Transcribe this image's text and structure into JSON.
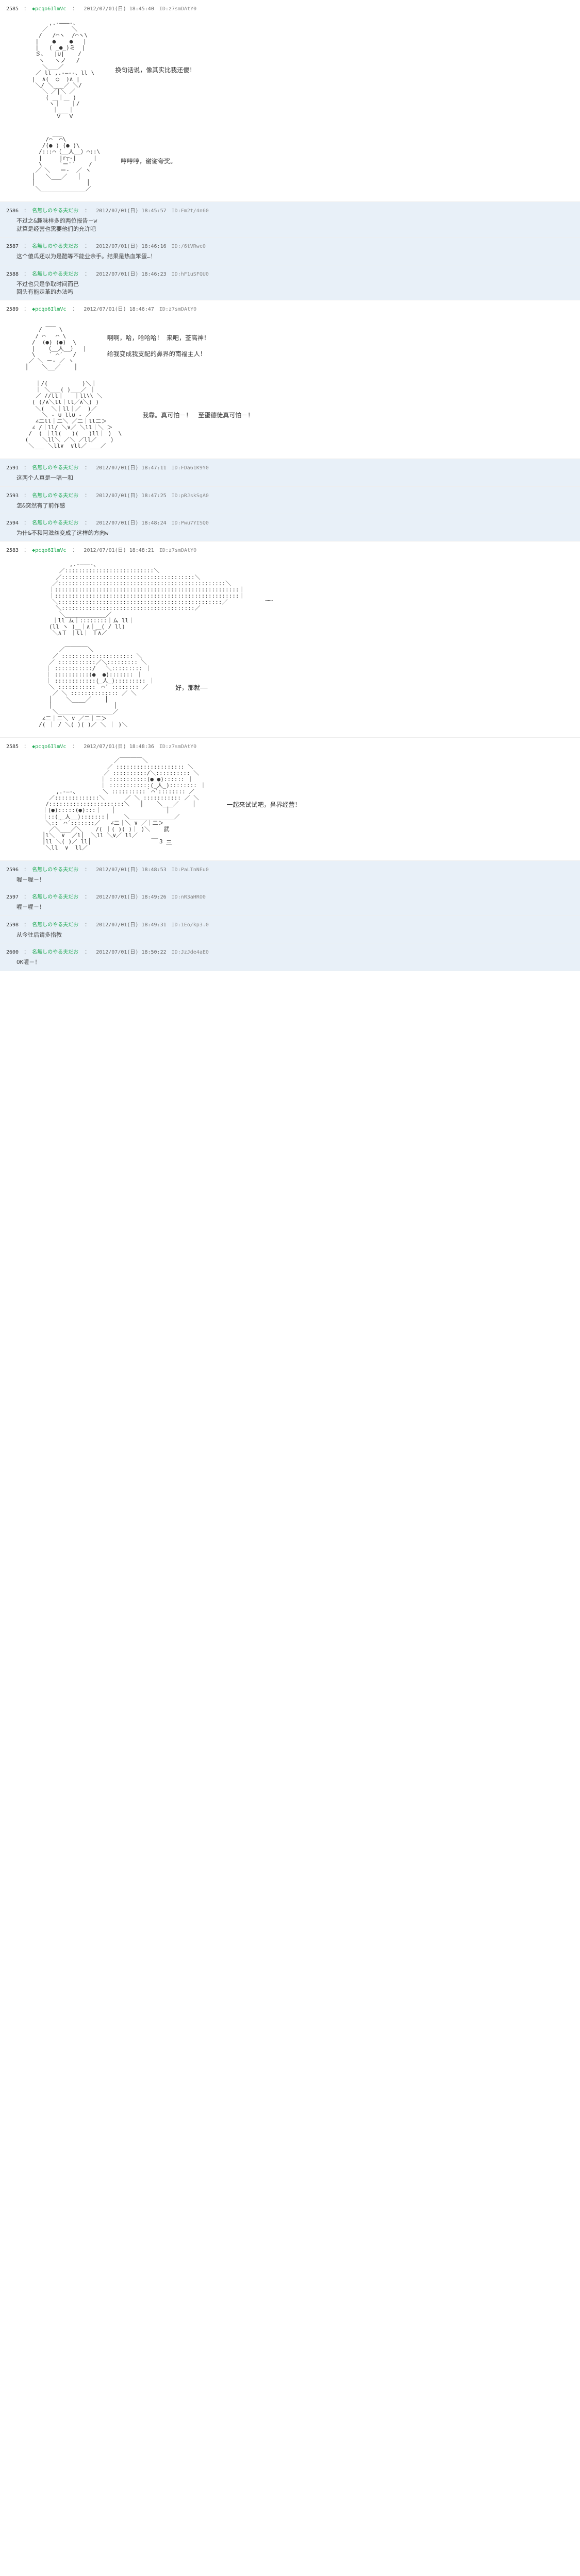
{
  "posts": [
    {
      "num": "2585",
      "name": "◆pcqo6IlmVc",
      "date": "2012/07/01(日) 18:45:40",
      "uid": "ID:z7smDAtY0",
      "type": "main",
      "aa_blocks": [
        {
          "art": "        ,.-―――-、\n      ／       ＼\n     /   /⌒ヽ  /⌒ヽ\\\n    |    ●    ●   |\n    |   ( _●_)ミ  |\n    彡､   |∪|    /\n     ヽ   ヽノ   /\n      ＼___／\n    ／ ll ,.-―‐-、ll \\\n   |  ∧(  ○  )∧ |\n    ＼/ ＼___／ ＼/\n      ＼ ／|＼ ／\n       ( ＿｜＿ )\n        ヽ｜   ｜/\n         ｜___｜\n          Ｖ  Ｖ",
          "text": "换句话说，像其实比我还傻！"
        },
        {
          "art": "         ___\n       /⌒  ⌒\\\n      /(● ) (● )\\\n     /:::⌒（__人__）⌒::\\\n     |     |r┬-|     |\n     \\     `ー'´    /\n    ／ ＼   ー‐  ／ ヽ\n   │   ＼___／   │\n   │               │\n    ＼_____________／",
          "text": "哼哼哼，谢谢夸奖。"
        }
      ]
    },
    {
      "num": "2586",
      "name": "名無しのやる夫だお",
      "date": "2012/07/01(日) 18:45:57",
      "uid": "ID:Fm2t/4n60",
      "type": "reply",
      "body": "不过之&趣味样多的两位报告－w\n就算是经营也需要他们的允许吧"
    },
    {
      "num": "2587",
      "name": "名無しのやる夫だお",
      "date": "2012/07/01(日) 18:46:16",
      "uid": "ID:/6tVRwc0",
      "type": "reply",
      "body": "这个傻瓜还以为是酷等不能业余手。结果是热血笨蛋…！"
    },
    {
      "num": "2588",
      "name": "名無しのやる夫だお",
      "date": "2012/07/01(日) 18:46:23",
      "uid": "ID:hF1uSFQU0",
      "type": "reply",
      "body": "不过也只是争取时间而已\n回头有能走革的办法吗"
    },
    {
      "num": "2589",
      "name": "◆pcqo6IlmVc",
      "date": "2012/07/01(日) 18:46:47",
      "uid": "ID:z7smDAtY0",
      "type": "main",
      "aa_blocks": [
        {
          "art": "       ___\n     /     \\\n    / ⌒   ⌒ \\\n   /  (●) (●)  \\\n   |   （__人__）  |\n   \\    ` ⌒´   /\n  ／ ＼ ー‐ ／ ヽ\n │    ＼__／    │",
          "text": "啊啊，哈，哈哈哈！  来吧，荃高神！\n\n给我变成我支配的鼻界的南福主人！"
        },
        {
          "art": "    ｜/(          )＼｜\n    ｜ ＼___( )___／ ｜\n    ／ //ll｜   ｜ll\\\\ ＼\n   ( (/∧＼ll｜ll／∧＼) )\n    ＼(  ＼｜ll｜／  )／\n      ＼ - ∪ ll∪ - ／\n    ∠二ll｜二＼ ／二｜ll二＞\n   ∠ /｜ll/ ＼∨／ ＼ll｜＼ ＞\n  /  ( ｜ll(   )(   )ll｜ )  \\\n (    ＼ll＼ ／＼ ／ll／    )\n  ＼___ ＼ll∨  ∨ll／ ___／",
          "text": "我靠。真可怕－！　至蛋德徒真可怕－！"
        }
      ]
    },
    {
      "num": "2591",
      "name": "名無しのやる夫だお",
      "date": "2012/07/01(日) 18:47:11",
      "uid": "ID:FDa61K9Y0",
      "type": "reply",
      "body": "这两个人真是一唱一和"
    },
    {
      "num": "2593",
      "name": "名無しのやる夫だお",
      "date": "2012/07/01(日) 18:47:25",
      "uid": "ID:pRJskSgA0",
      "type": "reply",
      "body": "怎&突然有了前作感"
    },
    {
      "num": "2594",
      "name": "名無しのやる夫だお",
      "date": "2012/07/01(日) 18:48:24",
      "uid": "ID:Pwu7YISQ0",
      "type": "reply",
      "body": "为什&不和阿滋丝变成了这样的方向w"
    },
    {
      "num": "2583",
      "name": "◆pcqo6IlmVc",
      "date": "2012/07/01(日) 18:48:21",
      "uid": "ID:z7smDAtY0",
      "type": "main",
      "aa_blocks": [
        {
          "art": "              ,.-―――-、\n           ／::::::::::::::::::::::::::＼\n          ／:::::::::::::::::::::::::::::::::::::::＼\n         ／:::::::::::::::::::::::::::::::::::::::::::::::::＼\n        ｜::::::::::::::::::::::::::::::::::::::::::::::::::::::｜\n        ｜::::::::::::::::::::::::::::::::::::::::::::::::::::::｜\n         ＼::::::::::::::::::::::::::::::::::::::::::::::::／\n          ＼:::::::::::::::::::::::::::::::::::::::／\n           ＼____________／\n         ｜ll ム｜::::::::｜ム ll｜\n        (ll ヽ )＿｜∧｜＿( / ll)\n         ＼∧Ｔ ｜ll｜ Ｔ∧／",
          "text": "……"
        },
        {
          "art": "           ／￣￣￣￣＼\n         ／ ::::::::::::::::::::: ＼\n        ／ :::::::::::／＼::::::::: ＼\n       ｜ :::::::::::/   ＼::::::::: ｜\n       ｜ ::::::::::(●  ●)::::::: ｜\n       ｜ ::::::::::::(_人_)::::::::: ｜\n        ＼ :::::::::::｀⌒´ :::::::: ／\n         ／ ＼ :::::::::::::: ／ ＼\n        │    ＼____／    │\n        │                  │\n         ＼________________／\n      ∠二｜二＼ ∨ ／二｜二＞\n     /( ｜ / ＼( )( )／ ＼ ｜ )＼",
          "text": "好，那就——"
        }
      ]
    },
    {
      "num": "2585",
      "name": "◆pcqo6IlmVc",
      "date": "2012/07/01(日) 18:48:36",
      "uid": "ID:z7smDAtY0",
      "type": "main",
      "aa_blocks": [
        {
          "art": "                           ／￣￣￣￣＼\n                         ／ :::::::::::::::::::: ＼\n                        ／ ::::::::::/＼:::::::::: ＼\n                       ｜ :::::::::::(● ●):::::: ｜\n                       ｜ ::::::::::::(_人_):::::::: ｜\n          ,.-―-、       ＼ ::::::::::｀⌒´:::::::: ／\n        ／:::::::::::::＼      ／ ＼ ::::::::::: ／ ＼\n       /::::::::::::::::::::::＼   │    ＼___／    │\n      ｜(●):::::(●):::｜   │               │\n      ｜::(__人__):::::::｜    ＼_____________／\n       ＼::｀⌒´:::::::／   ∠二｜＼ ∨ ／｜二＞\n        ／＼___／＼    /( ｜( )( )｜ )＼    武\n      │l＼  ∨  ／l│  ＼ll ＼∨／ ll／    __\n      │ll ＼( )／ ll│                    3 ＝\n       ＼ll  ∨  ll／                       ￣",
          "text": "一起来试试吧，鼻界经营！"
        }
      ]
    },
    {
      "num": "2596",
      "name": "名無しのやる夫だお",
      "date": "2012/07/01(日) 18:48:53",
      "uid": "ID:PaLTnNEu0",
      "type": "reply",
      "body": "喔－喔－！"
    },
    {
      "num": "2597",
      "name": "名無しのやる夫だお",
      "date": "2012/07/01(日) 18:49:26",
      "uid": "ID:nR3aHRO0",
      "type": "reply",
      "body": "喔－喔－！"
    },
    {
      "num": "2598",
      "name": "名無しのやる夫だお",
      "date": "2012/07/01(日) 18:49:31",
      "uid": "ID:1Eo/kp3.0",
      "type": "reply",
      "body": "从今往后请多指教"
    },
    {
      "num": "2600",
      "name": "名無しのやる夫だお",
      "date": "2012/07/01(日) 18:50:22",
      "uid": "ID:JzJde4aE0",
      "type": "reply",
      "body": "OK喔－！"
    }
  ]
}
